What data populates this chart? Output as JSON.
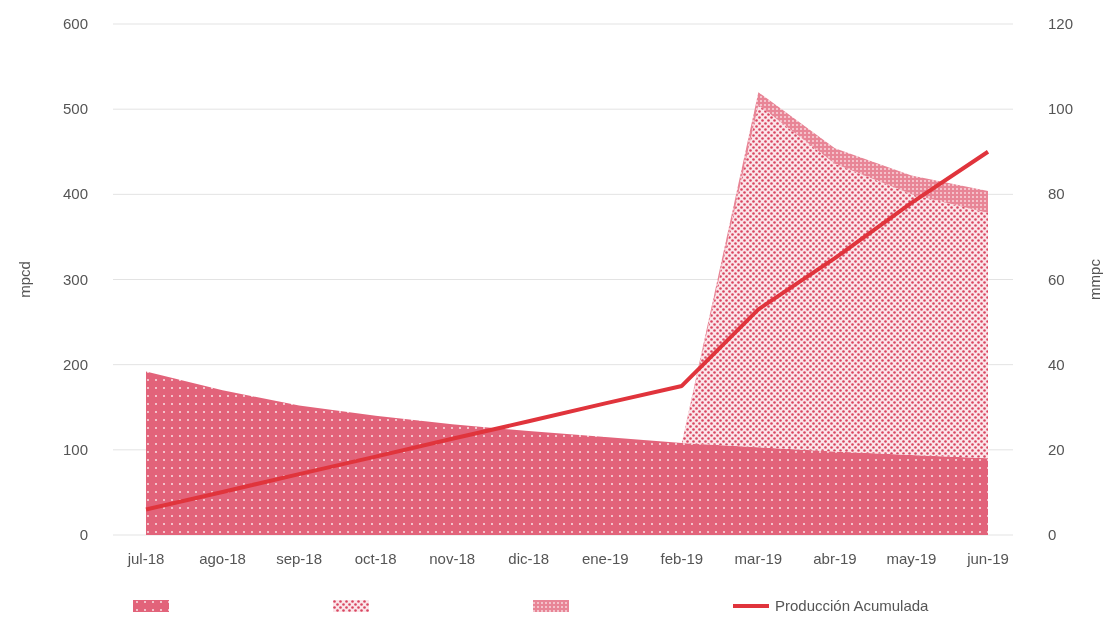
{
  "chart_data": {
    "type": "area",
    "stacked": true,
    "categories": [
      "jul-18",
      "ago-18",
      "sep-18",
      "oct-18",
      "nov-18",
      "dic-18",
      "ene-19",
      "feb-19",
      "mar-19",
      "abr-19",
      "may-19",
      "jun-19"
    ],
    "series": [
      {
        "color": "#e2637a",
        "values": [
          192,
          170,
          152,
          140,
          130,
          122,
          115,
          108,
          103,
          98,
          94,
          90
        ]
      },
      {
        "color": "#d94560",
        "values": [
          null,
          null,
          null,
          null,
          null,
          null,
          null,
          0,
          402,
          338,
          306,
          288
        ]
      },
      {
        "color": "#e88596",
        "values": [
          null,
          null,
          null,
          null,
          null,
          null,
          null,
          0,
          15,
          18,
          22,
          26
        ]
      },
      {
        "name": "Producción Acumulada",
        "type": "line",
        "axis": "y2",
        "color": "#e0343c",
        "values": [
          6,
          10.1,
          14.3,
          18.4,
          22.6,
          26.7,
          30.9,
          35,
          53,
          65,
          78,
          90
        ]
      }
    ],
    "ylabel": "mpcd",
    "y2label": "mmpc",
    "ylim": [
      0,
      600
    ],
    "yticks": [
      0,
      100,
      200,
      300,
      400,
      500,
      600
    ],
    "y2lim": [
      0,
      120
    ],
    "y2ticks": [
      0,
      20,
      40,
      60,
      80,
      100,
      120
    ],
    "grid": "y",
    "legend": "bottom"
  }
}
